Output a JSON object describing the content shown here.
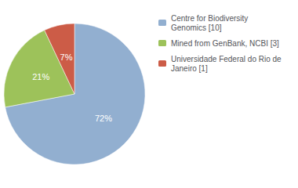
{
  "chart_data": {
    "type": "pie",
    "categories": [
      "Centre for Biodiversity\nGenomics [10]",
      "Mined from GenBank, NCBI [3]",
      "Universidade Federal do Rio de\nJaneiro [1]"
    ],
    "values": [
      72,
      21,
      7
    ],
    "value_labels": [
      "72%",
      "21%",
      "7%"
    ],
    "colors": [
      "#92afd0",
      "#9dc25a",
      "#cc5c47"
    ],
    "data_labels": true,
    "legend": "upper right"
  }
}
